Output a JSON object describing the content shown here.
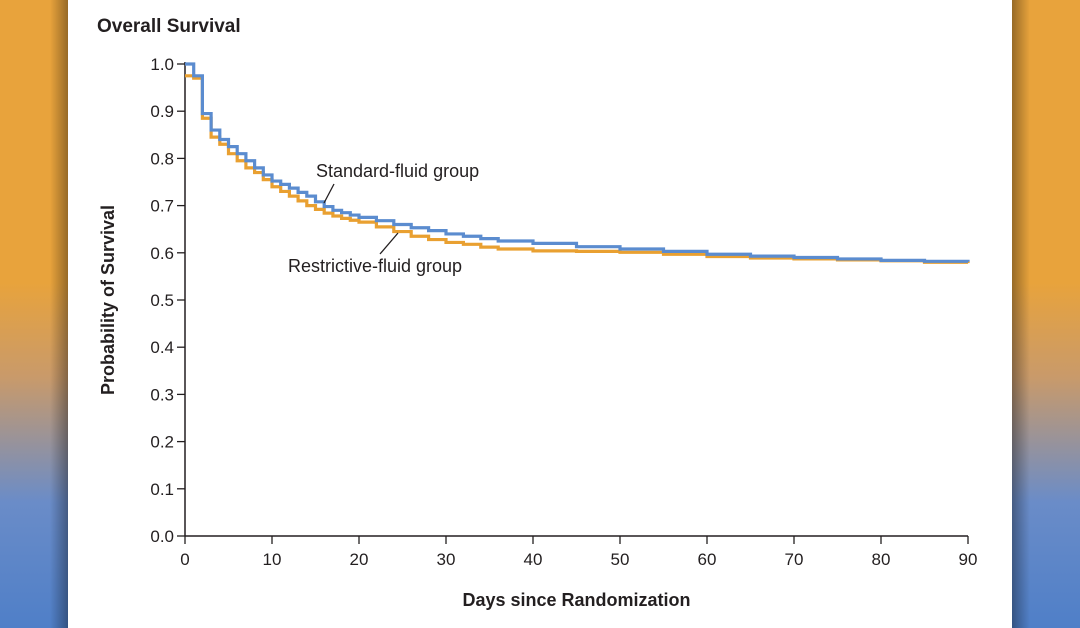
{
  "colors": {
    "standard": "#5b8ccf",
    "restrictive": "#e9a031",
    "axis": "#231f20"
  },
  "chart_data": {
    "type": "line",
    "step": true,
    "title": "Overall Survival",
    "xlabel": "Days since Randomization",
    "ylabel": "Probability of Survival",
    "xlim": [
      0,
      90
    ],
    "ylim": [
      0,
      1.0
    ],
    "x_ticks": [
      "0",
      "10",
      "20",
      "30",
      "40",
      "50",
      "60",
      "70",
      "80",
      "90"
    ],
    "y_ticks": [
      "0.0",
      "0.1",
      "0.2",
      "0.3",
      "0.4",
      "0.5",
      "0.6",
      "0.7",
      "0.8",
      "0.9",
      "1.0"
    ],
    "grid": false,
    "annotations": [
      {
        "text": "Standard-fluid group",
        "series": "Standard-fluid group"
      },
      {
        "text": "Restrictive-fluid group",
        "series": "Restrictive-fluid group"
      }
    ],
    "series": [
      {
        "name": "Standard-fluid group",
        "color": "#5b8ccf",
        "x": [
          0,
          1,
          2,
          3,
          4,
          5,
          6,
          7,
          8,
          9,
          10,
          11,
          12,
          13,
          14,
          15,
          16,
          17,
          18,
          19,
          20,
          22,
          24,
          26,
          28,
          30,
          32,
          34,
          36,
          40,
          45,
          50,
          55,
          60,
          65,
          70,
          75,
          80,
          85,
          90
        ],
        "y": [
          1.0,
          0.975,
          0.895,
          0.86,
          0.84,
          0.825,
          0.81,
          0.795,
          0.78,
          0.765,
          0.752,
          0.745,
          0.737,
          0.728,
          0.72,
          0.708,
          0.698,
          0.69,
          0.685,
          0.68,
          0.675,
          0.668,
          0.66,
          0.653,
          0.647,
          0.64,
          0.635,
          0.63,
          0.625,
          0.62,
          0.613,
          0.608,
          0.603,
          0.597,
          0.593,
          0.59,
          0.587,
          0.584,
          0.582,
          0.581
        ]
      },
      {
        "name": "Restrictive-fluid group",
        "color": "#e9a031",
        "x": [
          0,
          1,
          2,
          3,
          4,
          5,
          6,
          7,
          8,
          9,
          10,
          11,
          12,
          13,
          14,
          15,
          16,
          17,
          18,
          19,
          20,
          22,
          24,
          26,
          28,
          30,
          32,
          34,
          36,
          40,
          45,
          50,
          55,
          60,
          65,
          70,
          75,
          80,
          85,
          90
        ],
        "y": [
          0.975,
          0.97,
          0.885,
          0.845,
          0.83,
          0.81,
          0.795,
          0.78,
          0.77,
          0.755,
          0.74,
          0.73,
          0.72,
          0.71,
          0.7,
          0.692,
          0.684,
          0.678,
          0.673,
          0.669,
          0.665,
          0.655,
          0.645,
          0.635,
          0.628,
          0.622,
          0.618,
          0.612,
          0.608,
          0.604,
          0.603,
          0.601,
          0.597,
          0.592,
          0.589,
          0.587,
          0.585,
          0.583,
          0.58,
          0.578
        ]
      }
    ]
  }
}
